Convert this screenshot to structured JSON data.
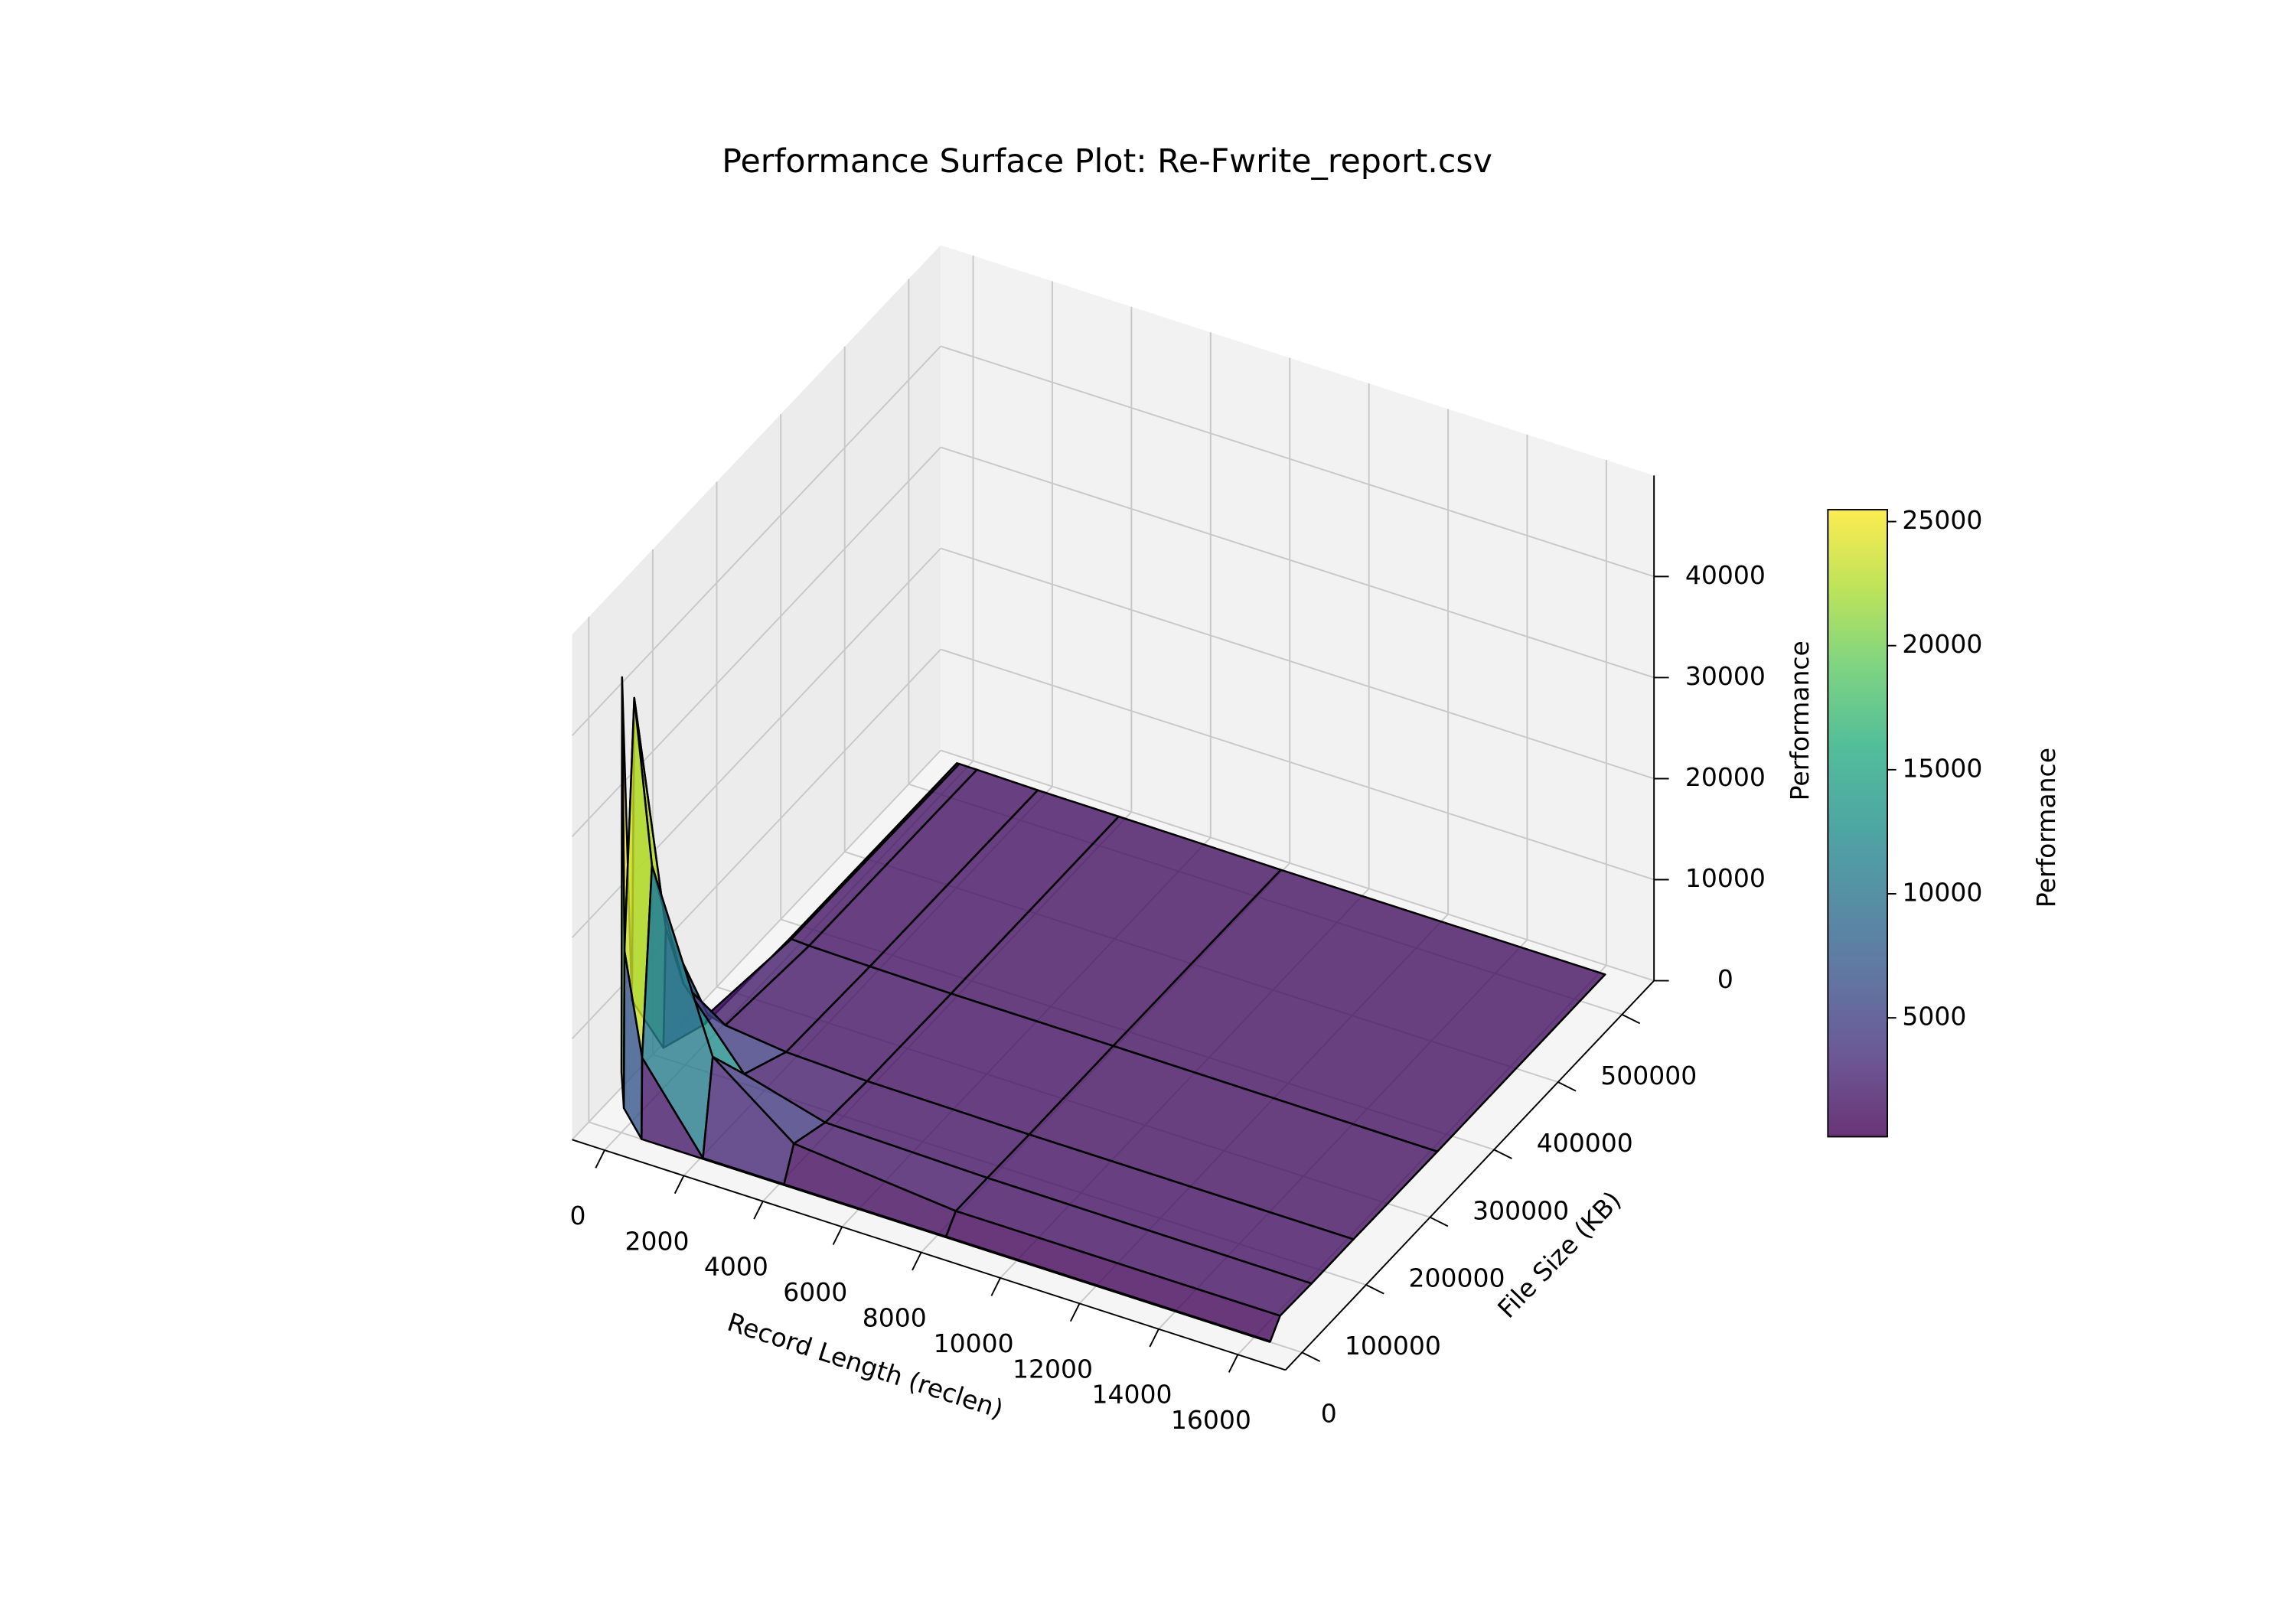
{
  "chart_data": {
    "type": "surface",
    "title": "Performance Surface Plot: Re-Fwrite_report.csv",
    "x_label": "Record Length (reclen)",
    "y_label": "File Size (KB)",
    "z_label": "Performance",
    "x": [
      4,
      64,
      512,
      2048,
      4096,
      8192,
      16384
    ],
    "y": [
      64,
      1024,
      16384,
      65536,
      131072,
      262144,
      524288
    ],
    "z": [
      [
        6000,
        2500,
        0,
        0,
        0,
        0,
        0
      ],
      [
        45000,
        18000,
        8000,
        0,
        0,
        0,
        0
      ],
      [
        12000,
        42000,
        26000,
        9000,
        3000,
        1500,
        1500
      ],
      [
        4000,
        16000,
        11000,
        4000,
        1800,
        1500,
        1400
      ],
      [
        2000,
        3000,
        2500,
        1800,
        1500,
        1400,
        1400
      ],
      [
        1600,
        1700,
        1600,
        1500,
        1400,
        1400,
        1300
      ],
      [
        1500,
        1500,
        1500,
        1400,
        1400,
        1300,
        1300
      ]
    ],
    "xlim": [
      -820,
      17204
    ],
    "ylim": [
      -26000,
      550000
    ],
    "zlim": [
      0,
      50000
    ],
    "xticks": [
      0,
      2000,
      4000,
      6000,
      8000,
      10000,
      12000,
      14000,
      16000
    ],
    "yticks": [
      0,
      100000,
      200000,
      300000,
      400000,
      500000
    ],
    "zticks": [
      0,
      10000,
      20000,
      30000,
      40000
    ],
    "colormap": "viridis",
    "colorbar": {
      "label": "Performance",
      "clim": [
        210,
        25480
      ],
      "ticks": [
        5000,
        10000,
        15000,
        20000,
        25000
      ]
    }
  }
}
